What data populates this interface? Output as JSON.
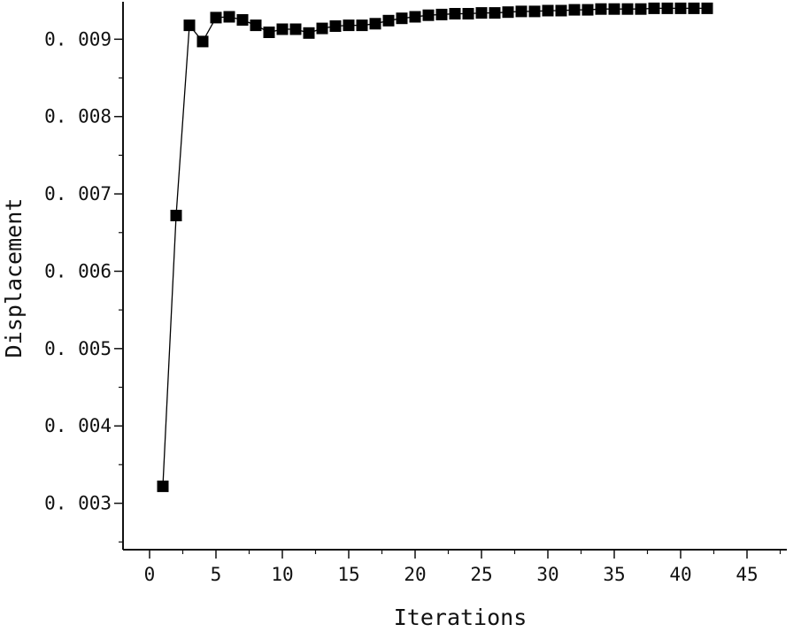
{
  "chart_data": {
    "type": "line",
    "title": "",
    "xlabel": "Iterations",
    "ylabel": "Displacement",
    "xlim": [
      -2,
      48
    ],
    "ylim": [
      0.0024,
      0.00945
    ],
    "xticks": [
      0,
      5,
      10,
      15,
      20,
      25,
      30,
      35,
      40,
      45
    ],
    "xtick_labels": [
      "0",
      "5",
      "10",
      "15",
      "20",
      "25",
      "30",
      "35",
      "40",
      "45"
    ],
    "yticks": [
      0.003,
      0.004,
      0.005,
      0.006,
      0.007,
      0.008,
      0.009
    ],
    "ytick_labels": [
      "0. 003",
      "0. 004",
      "0. 005",
      "0. 006",
      "0. 007",
      "0. 008",
      "0. 009"
    ],
    "grid": false,
    "legend": "none",
    "marker": "square",
    "series": [
      {
        "color": "#000000",
        "x": [
          1,
          2,
          3,
          4,
          5,
          6,
          7,
          8,
          9,
          10,
          11,
          12,
          13,
          14,
          15,
          16,
          17,
          18,
          19,
          20,
          21,
          22,
          23,
          24,
          25,
          26,
          27,
          28,
          29,
          30,
          31,
          32,
          33,
          34,
          35,
          36,
          37,
          38,
          39,
          40,
          41,
          42
        ],
        "y": [
          0.00322,
          0.00672,
          0.00918,
          0.00897,
          0.00928,
          0.00929,
          0.00925,
          0.00918,
          0.00909,
          0.00913,
          0.00913,
          0.00908,
          0.00914,
          0.00917,
          0.00918,
          0.00918,
          0.0092,
          0.00924,
          0.00927,
          0.00929,
          0.00931,
          0.00932,
          0.00933,
          0.00933,
          0.00934,
          0.00934,
          0.00935,
          0.00936,
          0.00936,
          0.00937,
          0.00937,
          0.00938,
          0.00938,
          0.00939,
          0.00939,
          0.00939,
          0.00939,
          0.0094,
          0.0094,
          0.0094,
          0.0094,
          0.0094
        ]
      }
    ]
  }
}
